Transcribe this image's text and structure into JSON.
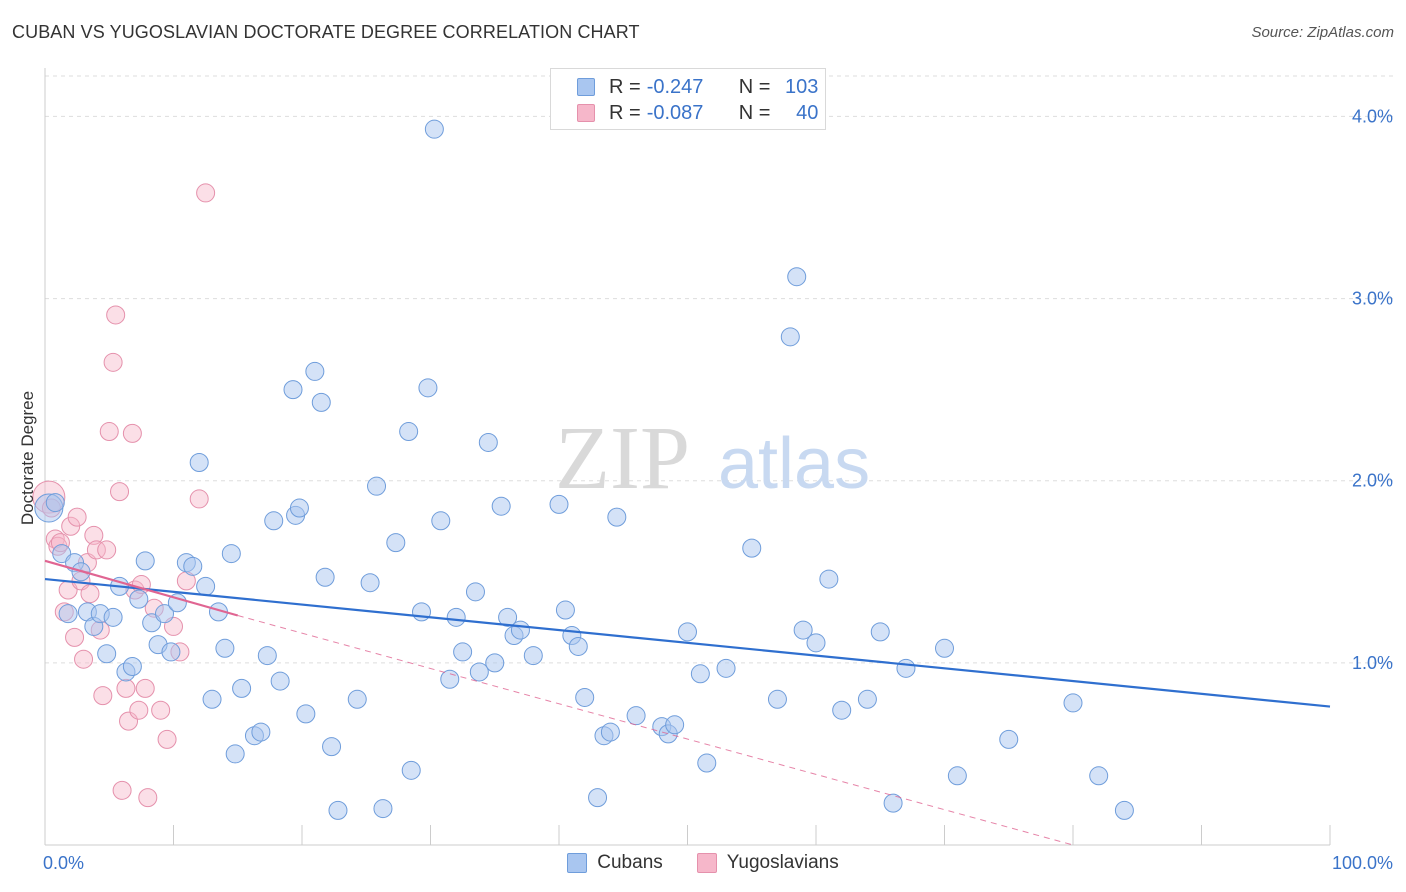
{
  "title": "CUBAN VS YUGOSLAVIAN DOCTORATE DEGREE CORRELATION CHART",
  "source": "Source: ZipAtlas.com",
  "watermark": {
    "part1": "ZIP",
    "part2": "atlas"
  },
  "legend": {
    "rows": [
      {
        "r_label": "R =",
        "r_value": "-0.247",
        "n_label": "N =",
        "n_value": "103"
      },
      {
        "r_label": "R =",
        "r_value": "-0.087",
        "n_label": "N =",
        "n_value": "40"
      }
    ]
  },
  "colors": {
    "blue_fill": "#a9c6f0",
    "blue_stroke": "#6f9ddb",
    "blue_line": "#2f6fcf",
    "pink_fill": "#f6b7ca",
    "pink_stroke": "#e591ac",
    "pink_line": "#e06592",
    "axis_text": "#3a73c9",
    "grid": "#dddddd"
  },
  "chart_data": {
    "type": "scatter",
    "title": "CUBAN VS YUGOSLAVIAN DOCTORATE DEGREE CORRELATION CHART",
    "xlabel": "",
    "ylabel": "Doctorate Degree",
    "xlim": [
      0,
      100
    ],
    "ylim": [
      0,
      4.2
    ],
    "x_ticks": [
      {
        "value": 0,
        "label": "0.0%"
      },
      {
        "value": 100,
        "label": "100.0%"
      }
    ],
    "y_ticks": [
      {
        "value": 1,
        "label": "1.0%"
      },
      {
        "value": 2,
        "label": "2.0%"
      },
      {
        "value": 3,
        "label": "3.0%"
      },
      {
        "value": 4,
        "label": "4.0%"
      }
    ],
    "series": [
      {
        "name": "Cubans",
        "points": [
          [
            0.3,
            1.85
          ],
          [
            0.8,
            1.88
          ],
          [
            1.3,
            1.6
          ],
          [
            1.8,
            1.27
          ],
          [
            2.3,
            1.55
          ],
          [
            2.8,
            1.5
          ],
          [
            3.3,
            1.28
          ],
          [
            3.8,
            1.2
          ],
          [
            4.3,
            1.27
          ],
          [
            4.8,
            1.05
          ],
          [
            5.3,
            1.25
          ],
          [
            5.8,
            1.42
          ],
          [
            6.3,
            0.95
          ],
          [
            6.8,
            0.98
          ],
          [
            7.3,
            1.35
          ],
          [
            7.8,
            1.56
          ],
          [
            8.3,
            1.22
          ],
          [
            8.8,
            1.1
          ],
          [
            9.3,
            1.27
          ],
          [
            9.8,
            1.06
          ],
          [
            10.3,
            1.33
          ],
          [
            11.0,
            1.55
          ],
          [
            11.5,
            1.53
          ],
          [
            12.0,
            2.1
          ],
          [
            12.5,
            1.42
          ],
          [
            13.0,
            0.8
          ],
          [
            13.5,
            1.28
          ],
          [
            14.0,
            1.08
          ],
          [
            14.5,
            1.6
          ],
          [
            14.8,
            0.5
          ],
          [
            15.3,
            0.86
          ],
          [
            16.3,
            0.6
          ],
          [
            16.8,
            0.62
          ],
          [
            17.3,
            1.04
          ],
          [
            17.8,
            1.78
          ],
          [
            18.3,
            0.9
          ],
          [
            19.3,
            2.5
          ],
          [
            19.5,
            1.81
          ],
          [
            19.8,
            1.85
          ],
          [
            20.3,
            0.72
          ],
          [
            21.0,
            2.6
          ],
          [
            21.5,
            2.43
          ],
          [
            21.8,
            1.47
          ],
          [
            22.3,
            0.54
          ],
          [
            22.8,
            0.19
          ],
          [
            24.3,
            0.8
          ],
          [
            25.3,
            1.44
          ],
          [
            25.8,
            1.97
          ],
          [
            26.3,
            0.2
          ],
          [
            27.3,
            1.66
          ],
          [
            28.3,
            2.27
          ],
          [
            28.5,
            0.41
          ],
          [
            29.3,
            1.28
          ],
          [
            29.8,
            2.51
          ],
          [
            30.3,
            3.93
          ],
          [
            30.8,
            1.78
          ],
          [
            31.5,
            0.91
          ],
          [
            32.0,
            1.25
          ],
          [
            32.5,
            1.06
          ],
          [
            33.5,
            1.39
          ],
          [
            33.8,
            0.95
          ],
          [
            34.5,
            2.21
          ],
          [
            35.0,
            1.0
          ],
          [
            35.5,
            1.86
          ],
          [
            36.0,
            1.25
          ],
          [
            36.5,
            1.15
          ],
          [
            37.0,
            1.18
          ],
          [
            38.0,
            1.04
          ],
          [
            40.0,
            1.87
          ],
          [
            40.5,
            1.29
          ],
          [
            41.0,
            1.15
          ],
          [
            41.5,
            1.09
          ],
          [
            42.0,
            0.81
          ],
          [
            43.0,
            0.26
          ],
          [
            43.5,
            0.6
          ],
          [
            44.0,
            0.62
          ],
          [
            44.5,
            1.8
          ],
          [
            46.0,
            0.71
          ],
          [
            48.0,
            0.65
          ],
          [
            48.5,
            0.61
          ],
          [
            49.0,
            0.66
          ],
          [
            50.0,
            1.17
          ],
          [
            51.0,
            0.94
          ],
          [
            51.5,
            0.45
          ],
          [
            53.0,
            0.97
          ],
          [
            55.0,
            1.63
          ],
          [
            57.0,
            0.8
          ],
          [
            58.0,
            2.79
          ],
          [
            58.5,
            3.12
          ],
          [
            59.0,
            1.18
          ],
          [
            60.0,
            1.11
          ],
          [
            61.0,
            1.46
          ],
          [
            62.0,
            0.74
          ],
          [
            64.0,
            0.8
          ],
          [
            65.0,
            1.17
          ],
          [
            66.0,
            0.23
          ],
          [
            67.0,
            0.97
          ],
          [
            70.0,
            1.08
          ],
          [
            71.0,
            0.38
          ],
          [
            75.0,
            0.58
          ],
          [
            80.0,
            0.78
          ],
          [
            82.0,
            0.38
          ],
          [
            84.0,
            0.19
          ]
        ],
        "trend": {
          "x": [
            0,
            100
          ],
          "y": [
            1.46,
            0.76
          ]
        }
      },
      {
        "name": "Yugoslavians",
        "points": [
          [
            0.3,
            1.91
          ],
          [
            0.5,
            1.85
          ],
          [
            0.8,
            1.68
          ],
          [
            1.0,
            1.64
          ],
          [
            1.2,
            1.66
          ],
          [
            1.5,
            1.28
          ],
          [
            1.8,
            1.4
          ],
          [
            2.0,
            1.75
          ],
          [
            2.3,
            1.14
          ],
          [
            2.5,
            1.8
          ],
          [
            2.8,
            1.45
          ],
          [
            3.0,
            1.02
          ],
          [
            3.3,
            1.55
          ],
          [
            3.5,
            1.38
          ],
          [
            3.8,
            1.7
          ],
          [
            4.0,
            1.62
          ],
          [
            4.3,
            1.18
          ],
          [
            4.5,
            0.82
          ],
          [
            4.8,
            1.62
          ],
          [
            5.0,
            2.27
          ],
          [
            5.3,
            2.65
          ],
          [
            5.5,
            2.91
          ],
          [
            5.8,
            1.94
          ],
          [
            6.0,
            0.3
          ],
          [
            6.3,
            0.86
          ],
          [
            6.5,
            0.68
          ],
          [
            6.8,
            2.26
          ],
          [
            7.0,
            1.4
          ],
          [
            7.3,
            0.74
          ],
          [
            7.5,
            1.43
          ],
          [
            7.8,
            0.86
          ],
          [
            8.0,
            0.26
          ],
          [
            8.5,
            1.3
          ],
          [
            9.0,
            0.74
          ],
          [
            9.5,
            0.58
          ],
          [
            10.0,
            1.2
          ],
          [
            10.5,
            1.06
          ],
          [
            11.0,
            1.45
          ],
          [
            12.0,
            1.9
          ],
          [
            12.5,
            3.58
          ]
        ],
        "trend_solid": {
          "x": [
            0,
            15
          ],
          "y": [
            1.56,
            1.26
          ]
        },
        "trend_dashed": {
          "x": [
            15,
            80
          ],
          "y": [
            1.26,
            0.0
          ]
        }
      }
    ],
    "legend": [
      "Cubans",
      "Yugoslavians"
    ]
  }
}
